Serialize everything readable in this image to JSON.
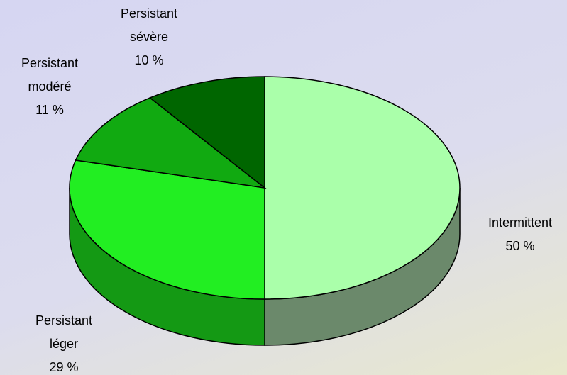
{
  "chart_data": {
    "type": "pie3d",
    "categories": [
      "Intermittent",
      "Persistant léger",
      "Persistant modéré",
      "Persistant sévère"
    ],
    "values": [
      50,
      29,
      11,
      10
    ],
    "value_labels": [
      "50 %",
      "29 %",
      "11 %",
      "10 %"
    ],
    "colors": [
      "#aaffaa",
      "#22ee22",
      "#11aa11",
      "#006600"
    ],
    "side_colors": [
      "#6b896b",
      "#149914",
      "#0c7a0c",
      "#004400"
    ]
  }
}
